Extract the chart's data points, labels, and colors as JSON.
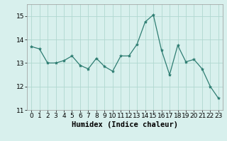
{
  "x": [
    0,
    1,
    2,
    3,
    4,
    5,
    6,
    7,
    8,
    9,
    10,
    11,
    12,
    13,
    14,
    15,
    16,
    17,
    18,
    19,
    20,
    21,
    22,
    23
  ],
  "y": [
    13.7,
    13.6,
    13.0,
    13.0,
    13.1,
    13.3,
    12.9,
    12.75,
    13.2,
    12.85,
    12.65,
    13.3,
    13.3,
    13.8,
    14.75,
    15.05,
    13.55,
    12.5,
    13.75,
    13.05,
    13.15,
    12.75,
    12.0,
    11.5
  ],
  "line_color": "#2e7d72",
  "marker": "*",
  "marker_size": 3,
  "bg_color": "#d8f0ed",
  "grid_color": "#b0d8d0",
  "xlabel": "Humidex (Indice chaleur)",
  "xlim": [
    -0.5,
    23.5
  ],
  "ylim": [
    11,
    15.5
  ],
  "yticks": [
    11,
    12,
    13,
    14,
    15
  ],
  "xticks": [
    0,
    1,
    2,
    3,
    4,
    5,
    6,
    7,
    8,
    9,
    10,
    11,
    12,
    13,
    14,
    15,
    16,
    17,
    18,
    19,
    20,
    21,
    22,
    23
  ],
  "xlabel_fontsize": 7.5,
  "tick_fontsize": 6.5,
  "linewidth": 0.9
}
